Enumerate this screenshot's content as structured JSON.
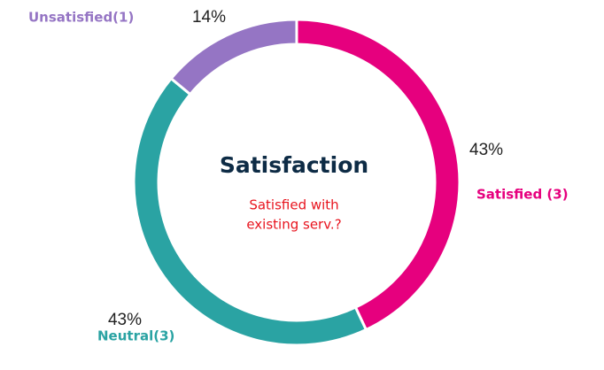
{
  "chart_data": {
    "type": "donut",
    "title": "Satisfaction",
    "subtitle": [
      "Satisfied with",
      "existing serv.?"
    ],
    "categories": [
      "Satisfied (3)",
      "Neutral(3)",
      "Unsatisfied(1)"
    ],
    "values": [
      43,
      43,
      14
    ],
    "value_labels": [
      "43%",
      "43%",
      "14%"
    ],
    "colors": [
      "#e6007e",
      "#2aa3a3",
      "#9575c4"
    ]
  }
}
